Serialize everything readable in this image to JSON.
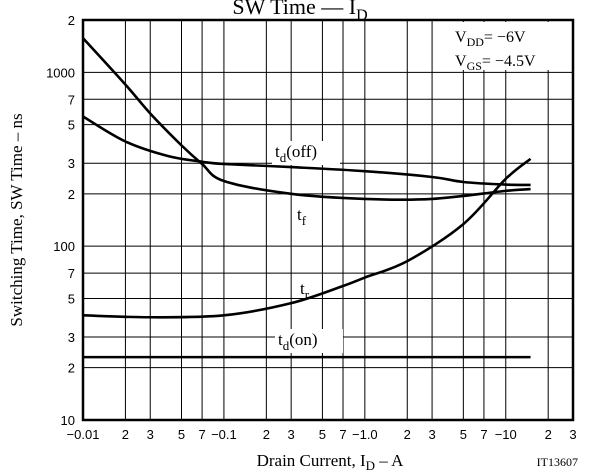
{
  "chart_data": {
    "type": "line",
    "title": [
      "SW Time  —  I",
      "D"
    ],
    "x_label": [
      "Drain Current, I",
      "D",
      "  –  A"
    ],
    "y_label": "Switching Time, SW Time  –  ns",
    "code": "IT13607",
    "conditions": [
      [
        "V",
        "DD",
        "= −6V"
      ],
      [
        "V",
        "GS",
        "= −4.5V"
      ]
    ],
    "x_scale": "log",
    "y_scale": "log",
    "grid": true,
    "xlim": [
      0.01,
      30
    ],
    "ylim": [
      10,
      2000
    ],
    "xticks": [
      {
        "value": 0.01,
        "label": "−0.01"
      },
      {
        "value": 0.02,
        "label": "2"
      },
      {
        "value": 0.03,
        "label": "3"
      },
      {
        "value": 0.05,
        "label": "5"
      },
      {
        "value": 0.07,
        "label": "7"
      },
      {
        "value": 0.1,
        "label": "−0.1"
      },
      {
        "value": 0.2,
        "label": "2"
      },
      {
        "value": 0.3,
        "label": "3"
      },
      {
        "value": 0.5,
        "label": "5"
      },
      {
        "value": 0.7,
        "label": "7"
      },
      {
        "value": 1,
        "label": "−1.0"
      },
      {
        "value": 2,
        "label": "2"
      },
      {
        "value": 3,
        "label": "3"
      },
      {
        "value": 5,
        "label": "5"
      },
      {
        "value": 7,
        "label": "7"
      },
      {
        "value": 10,
        "label": "−10"
      },
      {
        "value": 20,
        "label": "2"
      },
      {
        "value": 30,
        "label": "3"
      }
    ],
    "yticks": [
      10,
      {
        "value": 20,
        "label": "2"
      },
      {
        "value": 30,
        "label": "3"
      },
      {
        "value": 50,
        "label": "5"
      },
      {
        "value": 70,
        "label": "7"
      },
      100,
      {
        "value": 200,
        "label": "2"
      },
      {
        "value": 300,
        "label": "3"
      },
      {
        "value": 500,
        "label": "5"
      },
      {
        "value": 700,
        "label": "7"
      },
      1000,
      {
        "value": 2000,
        "label": "2"
      }
    ],
    "series": [
      {
        "name": [
          "t",
          "d",
          "(off)"
        ],
        "color": "#000000",
        "x": [
          0.01,
          0.02,
          0.04,
          0.07,
          0.1,
          0.3,
          1,
          3,
          5,
          10,
          15
        ],
        "values": [
          557,
          400,
          330,
          306,
          297,
          285,
          270,
          250,
          234,
          226,
          225
        ]
      },
      {
        "name": [
          "t",
          "f",
          ""
        ],
        "color": "#000000",
        "x": [
          0.01,
          0.02,
          0.03,
          0.05,
          0.07,
          0.1,
          0.3,
          1,
          3,
          10,
          15
        ],
        "values": [
          1573,
          850,
          580,
          380,
          297,
          237,
          200,
          187,
          187,
          208,
          213
        ]
      },
      {
        "name": [
          "t",
          "r",
          ""
        ],
        "color": "#000000",
        "x": [
          0.01,
          0.03,
          0.1,
          0.3,
          0.7,
          1,
          2,
          5,
          10,
          15
        ],
        "values": [
          40,
          39,
          40,
          47,
          59,
          66,
          82,
          134,
          244,
          318
        ]
      },
      {
        "name": [
          "t",
          "d",
          "(on)"
        ],
        "color": "#000000",
        "x": [
          0.01,
          15
        ],
        "values": [
          23,
          23
        ]
      }
    ]
  }
}
